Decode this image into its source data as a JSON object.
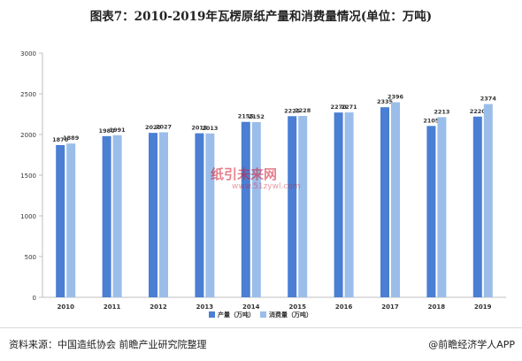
{
  "title": "图表7：2010-2019年瓦楞原纸产量和消费量情况(单位：万吨)",
  "footer": {
    "source": "资料来源：中国造纸协会 前瞻产业研究院整理",
    "brand": "@前瞻经济学人APP"
  },
  "watermark": {
    "center_text": "纸引未来网",
    "center_url": "www.51zywl.com"
  },
  "colors": {
    "series1": "#4a7fd3",
    "series2": "#9bbde9",
    "axis": "#bfbfbf",
    "text": "#333333"
  },
  "chart_data": {
    "type": "bar",
    "title": "图表7：2010-2019年瓦楞原纸产量和消费量情况(单位：万吨)",
    "categories": [
      "2010",
      "2011",
      "2012",
      "2013",
      "2014",
      "2015",
      "2016",
      "2017",
      "2018",
      "2019"
    ],
    "series": [
      {
        "name": "产量（万吨）",
        "values": [
          1870,
          1980,
          2020,
          2015,
          2155,
          2225,
          2270,
          2335,
          2105,
          2220
        ]
      },
      {
        "name": "消费量（万吨）",
        "values": [
          1889,
          1991,
          2027,
          2013,
          2152,
          2228,
          2271,
          2396,
          2213,
          2374
        ]
      }
    ],
    "ylim": [
      0,
      3000
    ],
    "yticks": [
      0,
      500,
      1000,
      1500,
      2000,
      2500,
      3000
    ],
    "grid": false,
    "legend": "bottom-center"
  }
}
